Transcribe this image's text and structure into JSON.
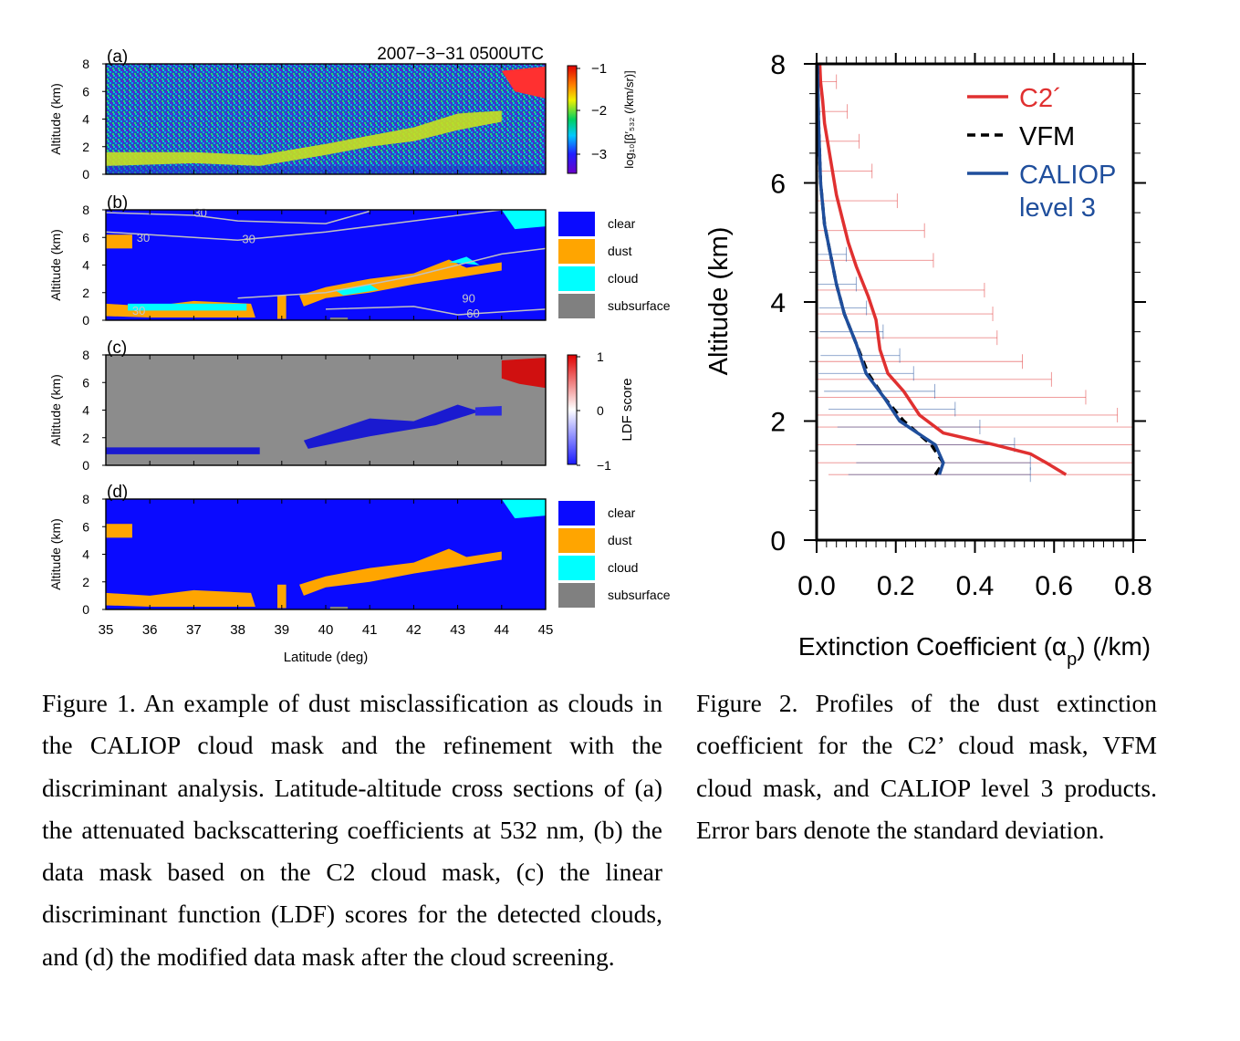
{
  "figure1": {
    "panels": [
      {
        "label": "(a)",
        "title": "2007−3−31 0500UTC"
      },
      {
        "label": "(b)"
      },
      {
        "label": "(c)"
      },
      {
        "label": "(d)"
      }
    ],
    "y_label": "Altitude (km)",
    "y_ticks": [
      "0",
      "2",
      "4",
      "6",
      "8"
    ],
    "x_label": "Latitude (deg)",
    "x_ticks": [
      "35",
      "36",
      "37",
      "38",
      "39",
      "40",
      "41",
      "42",
      "43",
      "44",
      "45"
    ],
    "colorbar_a": {
      "label": "log₁₀[β′₅₃₂ (/km/sr)]",
      "ticks": [
        "−1",
        "−2",
        "−3"
      ]
    },
    "colorbar_c": {
      "label": "LDF score",
      "ticks": [
        "1",
        "0",
        "−1"
      ]
    },
    "mask_legend": [
      {
        "label": "clear",
        "color": "#0a0aff"
      },
      {
        "label": "dust",
        "color": "#ffa500"
      },
      {
        "label": "cloud",
        "color": "#00ffff"
      },
      {
        "label": "subsurface",
        "color": "#808080"
      }
    ],
    "contour_labels_b": [
      "30",
      "30",
      "30",
      "90",
      "60",
      "30"
    ],
    "colors": {
      "clear": "#0a0aff",
      "dust": "#ffa500",
      "cloud": "#00ffff",
      "subsurface": "#808080",
      "background_c": "#8c8c8c"
    }
  },
  "chart_data": {
    "type": "line",
    "xlabel": "Extinction Coefficient (αp) (/km)",
    "ylabel": "Altitude (km)",
    "xlim": [
      0.0,
      0.8
    ],
    "ylim": [
      0,
      8
    ],
    "xticks": [
      "0.0",
      "0.2",
      "0.4",
      "0.6",
      "0.8"
    ],
    "yticks": [
      "0",
      "2",
      "4",
      "6",
      "8"
    ],
    "legend_position": "top-right",
    "series": [
      {
        "name": "C2´",
        "color": "#e03030",
        "style": "solid",
        "x": [
          0.63,
          0.58,
          0.54,
          0.45,
          0.32,
          0.26,
          0.22,
          0.18,
          0.16,
          0.15,
          0.13,
          0.1,
          0.08,
          0.065,
          0.05,
          0.04,
          0.03,
          0.02,
          0.015,
          0.01,
          0.008
        ],
        "y": [
          1.1,
          1.3,
          1.45,
          1.6,
          1.8,
          2.1,
          2.5,
          2.8,
          3.2,
          3.7,
          4.1,
          4.6,
          5.0,
          5.4,
          5.8,
          6.2,
          6.6,
          7.0,
          7.4,
          7.7,
          8.0
        ]
      },
      {
        "name": "VFM",
        "color": "#000000",
        "style": "dashed",
        "x": [
          0.3,
          0.32,
          0.29,
          0.22,
          0.17,
          0.13,
          0.1,
          0.07,
          0.05,
          0.035,
          0.02,
          0.01,
          0.005,
          0.002
        ],
        "y": [
          1.1,
          1.3,
          1.6,
          2.0,
          2.4,
          2.8,
          3.3,
          3.8,
          4.3,
          4.8,
          5.3,
          6.0,
          7.0,
          8.0
        ]
      },
      {
        "name": "CALIOP\nlevel 3",
        "color": "#1f4e9c",
        "style": "solid",
        "x": [
          0.31,
          0.32,
          0.3,
          0.21,
          0.17,
          0.125,
          0.1,
          0.07,
          0.05,
          0.035,
          0.02,
          0.01,
          0.005,
          0.002
        ],
        "y": [
          1.1,
          1.3,
          1.6,
          2.0,
          2.4,
          2.8,
          3.3,
          3.8,
          4.3,
          4.8,
          5.3,
          6.0,
          7.0,
          8.0
        ]
      }
    ],
    "error_bars": {
      "C2´": {
        "altitudes": [
          1.1,
          1.3,
          1.6,
          1.9,
          2.1,
          2.4,
          2.7,
          3.0,
          3.4,
          3.8,
          4.2,
          4.7,
          5.2,
          5.7,
          6.2,
          6.7,
          7.2,
          7.7
        ],
        "half_width": [
          0.6,
          0.6,
          0.6,
          0.55,
          0.5,
          0.45,
          0.4,
          0.35,
          0.3,
          0.3,
          0.3,
          0.2,
          0.2,
          0.15,
          0.1,
          0.08,
          0.06,
          0.04
        ]
      },
      "CALIOP\nlevel 3": {
        "altitudes": [
          1.1,
          1.3,
          1.6,
          1.9,
          2.2,
          2.5,
          2.8,
          3.1,
          3.5,
          3.9,
          4.3,
          4.8
        ],
        "half_width": [
          0.23,
          0.22,
          0.2,
          0.18,
          0.16,
          0.14,
          0.12,
          0.1,
          0.08,
          0.06,
          0.05,
          0.04
        ]
      }
    }
  },
  "captions": {
    "figure1": "Figure 1. An example of dust misclassification as clouds in the CALIOP cloud mask and the refinement with the discriminant analysis. Latitude-altitude cross sections of (a) the attenuated backscattering coefficients at 532 nm, (b) the data mask based on the C2 cloud mask, (c) the linear discriminant function (LDF) scores for the detected clouds, and (d) the modified data mask after the cloud screening.",
    "figure2": "Figure 2. Profiles of the dust extinction coefficient for the C2’ cloud mask, VFM cloud mask, and CALIOP level 3 products. Error bars denote the standard deviation."
  }
}
